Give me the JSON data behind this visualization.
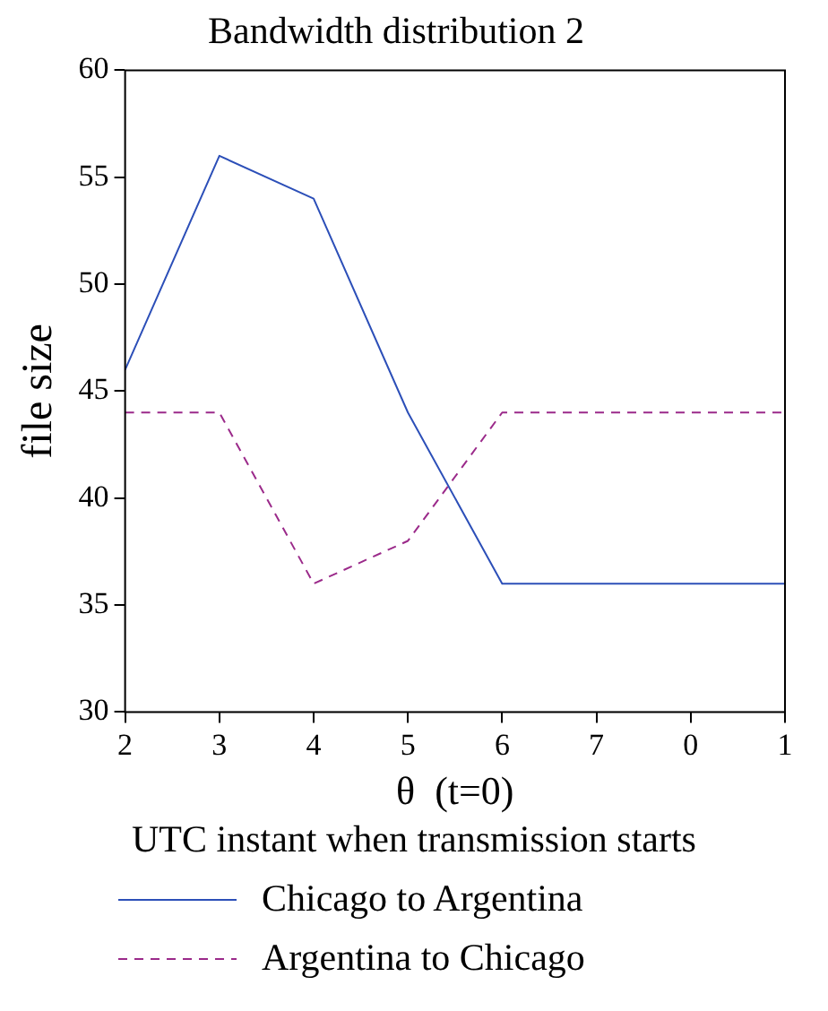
{
  "chart_data": {
    "type": "line",
    "title": "Bandwidth distribution 2",
    "xlabel": "θ  (t=0)",
    "ylabel": "file size",
    "legend_title": "UTC instant when transmission starts",
    "categories": [
      "2",
      "3",
      "4",
      "5",
      "6",
      "7",
      "0",
      "1"
    ],
    "series": [
      {
        "name": "Chicago to Argentina",
        "color": "#2c4fb8",
        "values": [
          46,
          56,
          54,
          44,
          36,
          36,
          36,
          36
        ],
        "line_style": "solid"
      },
      {
        "name": "Argentina to Chicago",
        "color": "#9b2a8a",
        "values": [
          44,
          44,
          36,
          38,
          44,
          44,
          44,
          44
        ],
        "line_style": "dashed"
      }
    ],
    "ylim": [
      30,
      60
    ],
    "yticks": [
      30,
      35,
      40,
      45,
      50,
      55,
      60
    ],
    "grid": false,
    "legend": "bottom",
    "marker": "none"
  }
}
